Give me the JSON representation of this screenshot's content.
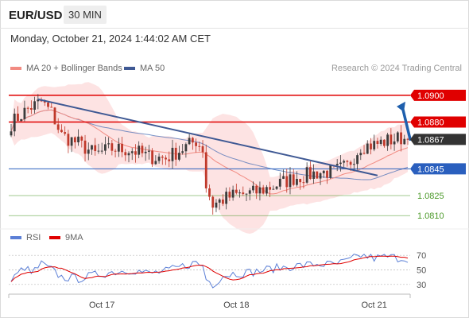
{
  "header": {
    "symbol": "EUR/USD",
    "timeframe": "30 MIN",
    "timestamp": "Monday, October 21, 2024 1:44:02 AM CET"
  },
  "legend": {
    "ma20_label": "MA 20 + Bollinger Bands",
    "ma50_label": "MA 50",
    "credit": "Research © 2024 Trading Central",
    "rsi_label": "RSI",
    "ma9_label": "9MA"
  },
  "colors": {
    "ma20": "#f28b82",
    "band_fill": "#fde3e3",
    "ma50": "#4a6fb5",
    "trendline": "#3f5994",
    "resistance": "#e00000",
    "support": "#2a5fbe",
    "target": "#4c9a2a",
    "current": "#333333",
    "arrow": "#1f5fad",
    "candle_up": "#3b3b3b",
    "candle_down": "#c0392b",
    "rsi": "#5b7fd6",
    "rsi_ma": "#e00000"
  },
  "chart_data": [
    {
      "type": "candlestick",
      "title": "",
      "ylim": [
        1.0803,
        1.091
      ],
      "x_ticks": [
        "Oct 17",
        "Oct 18",
        "Oct 21"
      ],
      "last_price": 1.0867,
      "price_levels": [
        {
          "label": "1.0900",
          "value": 1.09,
          "kind": "resistance"
        },
        {
          "label": "1.0880",
          "value": 1.088,
          "kind": "resistance"
        },
        {
          "label": "1.0867",
          "value": 1.0867,
          "kind": "current"
        },
        {
          "label": "1.0845",
          "value": 1.0845,
          "kind": "support"
        },
        {
          "label": "1.0825",
          "value": 1.0825,
          "kind": "target"
        },
        {
          "label": "1.0810",
          "value": 1.081,
          "kind": "target"
        }
      ],
      "series": [
        {
          "name": "MA 20 + Bollinger Bands",
          "kind": "ma20"
        },
        {
          "name": "MA 50",
          "kind": "ma50"
        }
      ],
      "forecast": {
        "from": 1.0867,
        "to": 1.09,
        "direction": "up"
      },
      "trendline": {
        "start": 1.0897,
        "end": 1.084
      },
      "anchors": [
        {
          "bar": 0,
          "close": 1.0879
        },
        {
          "bar": 5,
          "close": 1.089
        },
        {
          "bar": 9,
          "close": 1.0895
        },
        {
          "bar": 12,
          "close": 1.0887
        },
        {
          "bar": 15,
          "close": 1.087
        },
        {
          "bar": 20,
          "close": 1.0864
        },
        {
          "bar": 25,
          "close": 1.0856
        },
        {
          "bar": 30,
          "close": 1.086
        },
        {
          "bar": 36,
          "close": 1.0859
        },
        {
          "bar": 41,
          "close": 1.0854
        },
        {
          "bar": 46,
          "close": 1.0853
        },
        {
          "bar": 51,
          "close": 1.086
        },
        {
          "bar": 55,
          "close": 1.0866
        },
        {
          "bar": 57,
          "close": 1.086
        },
        {
          "bar": 58,
          "close": 1.0832
        },
        {
          "bar": 60,
          "close": 1.0818
        },
        {
          "bar": 63,
          "close": 1.0822
        },
        {
          "bar": 66,
          "close": 1.0825
        },
        {
          "bar": 72,
          "close": 1.0827
        },
        {
          "bar": 78,
          "close": 1.0832
        },
        {
          "bar": 84,
          "close": 1.0838
        },
        {
          "bar": 91,
          "close": 1.0842
        },
        {
          "bar": 96,
          "close": 1.0843
        },
        {
          "bar": 100,
          "close": 1.0847
        },
        {
          "bar": 104,
          "close": 1.0862
        },
        {
          "bar": 108,
          "close": 1.0863
        },
        {
          "bar": 112,
          "close": 1.0866
        },
        {
          "bar": 116,
          "close": 1.0868
        },
        {
          "bar": 118,
          "close": 1.0867
        }
      ]
    },
    {
      "type": "line",
      "title": "",
      "series": [
        {
          "name": "RSI"
        },
        {
          "name": "9MA"
        }
      ],
      "ylim": [
        20,
        80
      ],
      "y_ticks": [
        70,
        50,
        30
      ],
      "rsi_anchors": [
        {
          "bar": 0,
          "value": 35
        },
        {
          "bar": 4,
          "value": 54
        },
        {
          "bar": 6,
          "value": 45
        },
        {
          "bar": 9,
          "value": 58
        },
        {
          "bar": 12,
          "value": 50
        },
        {
          "bar": 15,
          "value": 40
        },
        {
          "bar": 20,
          "value": 38
        },
        {
          "bar": 25,
          "value": 43
        },
        {
          "bar": 30,
          "value": 47
        },
        {
          "bar": 36,
          "value": 50
        },
        {
          "bar": 41,
          "value": 45
        },
        {
          "bar": 46,
          "value": 48
        },
        {
          "bar": 51,
          "value": 55
        },
        {
          "bar": 55,
          "value": 60
        },
        {
          "bar": 57,
          "value": 55
        },
        {
          "bar": 58,
          "value": 38
        },
        {
          "bar": 60,
          "value": 30
        },
        {
          "bar": 63,
          "value": 42
        },
        {
          "bar": 66,
          "value": 45
        },
        {
          "bar": 72,
          "value": 47
        },
        {
          "bar": 78,
          "value": 52
        },
        {
          "bar": 84,
          "value": 55
        },
        {
          "bar": 91,
          "value": 58
        },
        {
          "bar": 96,
          "value": 57
        },
        {
          "bar": 100,
          "value": 62
        },
        {
          "bar": 104,
          "value": 70
        },
        {
          "bar": 108,
          "value": 66
        },
        {
          "bar": 112,
          "value": 68
        },
        {
          "bar": 116,
          "value": 66
        },
        {
          "bar": 118,
          "value": 66
        }
      ]
    }
  ]
}
